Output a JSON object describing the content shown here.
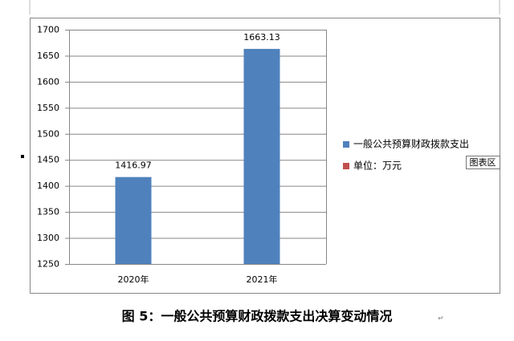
{
  "chart_data": {
    "type": "bar",
    "categories": [
      "2020年",
      "2021年"
    ],
    "series": [
      {
        "name": "一般公共预算财政拨款支出",
        "color": "#4f81bd",
        "values": [
          1416.97,
          1663.13
        ]
      },
      {
        "name": "单位：万元",
        "color": "#c0504d",
        "values": [
          null,
          null
        ]
      }
    ],
    "ylim": [
      1250,
      1700
    ],
    "yticks": [
      1250,
      1300,
      1350,
      1400,
      1450,
      1500,
      1550,
      1600,
      1650,
      1700
    ],
    "grid": true,
    "legend": "right",
    "tooltip": "图表区",
    "caption": "图 5：一般公共预算财政拨款支出决算变动情况"
  }
}
